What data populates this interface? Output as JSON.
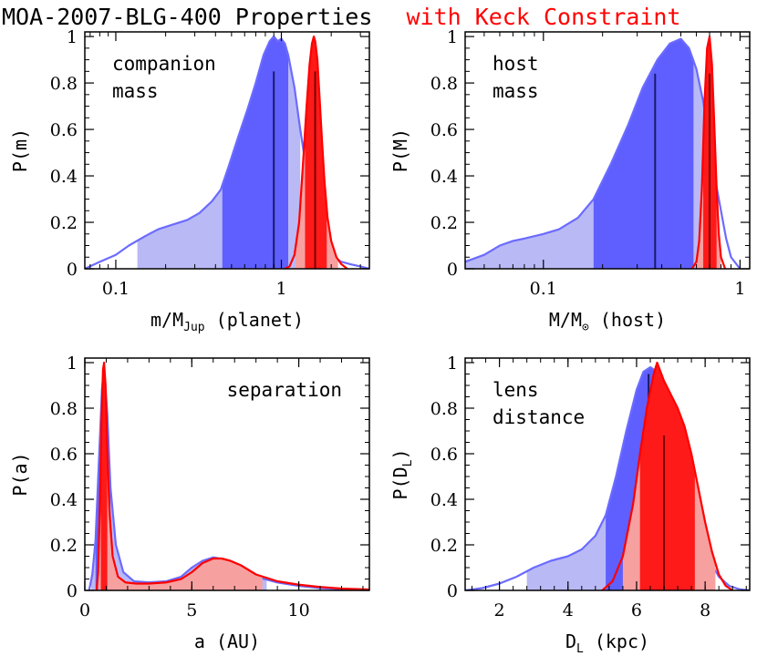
{
  "figure": {
    "title_main": "MOA-2007-BLG-400 Properties",
    "title_red": "with Keck Constraint",
    "colors": {
      "prior_fill": "#5f5fff",
      "prior_fill_light": "#b9b9f6",
      "prior_line": "#6b6bff",
      "keck_fill": "#ff1a1a",
      "keck_fill_light": "#f7a0a0",
      "keck_line": "#ff0000",
      "marker_line": "#1a1a6b"
    }
  },
  "chart_data": [
    {
      "id": "companion-mass",
      "type": "area",
      "xscale": "log",
      "xlim": [
        0.065,
        3.4
      ],
      "ylim": [
        0,
        1.02
      ],
      "xticks": [
        0.1,
        1
      ],
      "xticklabels": [
        "0.1",
        "1"
      ],
      "yticks": [
        0,
        0.2,
        0.4,
        0.6,
        0.8,
        1
      ],
      "yticklabels": [
        "0",
        "0.2",
        "0.4",
        "0.6",
        "0.8",
        "1"
      ],
      "ylabel": "P(m)",
      "xlabel_main": "m/M",
      "xlabel_sub": "Jup",
      "xlabel_tail": " (planet)",
      "annotation": [
        "companion",
        "mass"
      ],
      "annotation_corner": "top-left",
      "series": [
        {
          "kind": "prior",
          "x": [
            0.065,
            0.08,
            0.1,
            0.12,
            0.15,
            0.18,
            0.22,
            0.27,
            0.32,
            0.38,
            0.43,
            0.48,
            0.55,
            0.62,
            0.7,
            0.78,
            0.85,
            0.9,
            0.95,
            1.0,
            1.05,
            1.1,
            1.2,
            1.3,
            1.4,
            1.6,
            1.8,
            2.0,
            2.3,
            2.6,
            3.0,
            3.4
          ],
          "y": [
            0.0,
            0.03,
            0.06,
            0.1,
            0.14,
            0.17,
            0.19,
            0.21,
            0.24,
            0.29,
            0.34,
            0.44,
            0.57,
            0.68,
            0.8,
            0.92,
            0.98,
            1.0,
            0.98,
            0.99,
            0.97,
            0.92,
            0.78,
            0.6,
            0.45,
            0.25,
            0.12,
            0.06,
            0.03,
            0.02,
            0.01,
            0.0
          ],
          "shade_inner": [
            0.44,
            1.1
          ],
          "shade_outer": [
            0.135,
            1.3
          ],
          "marker": 0.9,
          "marker_height": 0.85
        },
        {
          "kind": "keck",
          "x": [
            1.05,
            1.12,
            1.2,
            1.28,
            1.35,
            1.42,
            1.48,
            1.53,
            1.57,
            1.6,
            1.62,
            1.65,
            1.7,
            1.76,
            1.82,
            1.9,
            2.0,
            2.15,
            2.3,
            2.5
          ],
          "y": [
            0.0,
            0.01,
            0.06,
            0.2,
            0.45,
            0.7,
            0.88,
            0.97,
            1.0,
            0.98,
            0.95,
            0.9,
            0.74,
            0.55,
            0.38,
            0.22,
            0.12,
            0.05,
            0.02,
            0.0
          ],
          "shade_inner": [
            1.39,
            1.88
          ],
          "shade_outer": [
            1.22,
            2.2
          ],
          "marker": 1.6,
          "marker_height": 0.85
        }
      ]
    },
    {
      "id": "host-mass",
      "type": "area",
      "xscale": "log",
      "xlim": [
        0.04,
        1.12
      ],
      "ylim": [
        0,
        1.02
      ],
      "xticks": [
        0.1,
        1
      ],
      "xticklabels": [
        "0.1",
        "1"
      ],
      "yticks": [
        0,
        0.2,
        0.4,
        0.6,
        0.8,
        1
      ],
      "yticklabels": [
        "0",
        "0.2",
        "0.4",
        "0.6",
        "0.8",
        "1"
      ],
      "ylabel": "P(M)",
      "xlabel_main": "M/M",
      "xlabel_sub": "⊙",
      "xlabel_tail": " (host)",
      "annotation": [
        "host",
        "mass"
      ],
      "annotation_corner": "top-left",
      "series": [
        {
          "kind": "prior",
          "x": [
            0.04,
            0.05,
            0.06,
            0.07,
            0.08,
            0.1,
            0.12,
            0.15,
            0.18,
            0.22,
            0.27,
            0.32,
            0.38,
            0.44,
            0.5,
            0.55,
            0.6,
            0.65,
            0.7,
            0.75,
            0.8,
            0.85,
            0.9,
            1.0
          ],
          "y": [
            0.03,
            0.06,
            0.1,
            0.12,
            0.13,
            0.15,
            0.17,
            0.22,
            0.3,
            0.45,
            0.62,
            0.78,
            0.9,
            0.97,
            0.99,
            0.95,
            0.86,
            0.72,
            0.54,
            0.38,
            0.25,
            0.13,
            0.05,
            0.0
          ],
          "shade_inner": [
            0.18,
            0.58
          ],
          "shade_outer": [
            0.04,
            0.68
          ],
          "marker": 0.37,
          "marker_height": 0.84
        },
        {
          "kind": "keck",
          "x": [
            0.57,
            0.6,
            0.62,
            0.64,
            0.66,
            0.68,
            0.7,
            0.72,
            0.74,
            0.76,
            0.78,
            0.8,
            0.84
          ],
          "y": [
            0.0,
            0.03,
            0.12,
            0.35,
            0.72,
            0.95,
            1.0,
            0.88,
            0.62,
            0.35,
            0.15,
            0.05,
            0.0
          ],
          "shade_inner": [
            0.65,
            0.76
          ],
          "shade_outer": [
            0.6,
            0.8
          ],
          "marker": 0.7,
          "marker_height": 0.84
        }
      ]
    },
    {
      "id": "separation",
      "type": "area",
      "xscale": "linear",
      "xlim": [
        0,
        13.3
      ],
      "ylim": [
        0,
        1.02
      ],
      "xticks": [
        0,
        5,
        10
      ],
      "xticklabels": [
        "0",
        "5",
        "10"
      ],
      "yticks": [
        0,
        0.2,
        0.4,
        0.6,
        0.8,
        1
      ],
      "yticklabels": [
        "0",
        "0.2",
        "0.4",
        "0.6",
        "0.8",
        "1"
      ],
      "ylabel": "P(a)",
      "xlabel_main": "a (AU)",
      "xlabel_sub": "",
      "xlabel_tail": "",
      "annotation": [
        "separation"
      ],
      "annotation_corner": "top-right",
      "series": [
        {
          "kind": "prior",
          "x": [
            0.2,
            0.35,
            0.5,
            0.65,
            0.8,
            0.9,
            1.05,
            1.2,
            1.45,
            1.8,
            2.3,
            3.0,
            3.8,
            4.5,
            5.0,
            5.5,
            6.0,
            6.3,
            6.7,
            7.2,
            8.0,
            9.0,
            10.0,
            11.0,
            12.0,
            13.3
          ],
          "y": [
            0.0,
            0.07,
            0.22,
            0.55,
            0.88,
            0.98,
            0.78,
            0.45,
            0.2,
            0.08,
            0.04,
            0.035,
            0.04,
            0.06,
            0.1,
            0.13,
            0.145,
            0.14,
            0.13,
            0.1,
            0.06,
            0.035,
            0.02,
            0.01,
            0.005,
            0.0
          ],
          "shade_inner": [
            0.5,
            1.2
          ],
          "shade_outer": [
            0.3,
            8.5
          ],
          "marker": 0.9,
          "marker_height": 0.0
        },
        {
          "kind": "keck",
          "x": [
            0.55,
            0.62,
            0.7,
            0.78,
            0.85,
            0.9,
            0.97,
            1.05,
            1.15,
            1.3,
            1.55,
            1.9,
            2.4,
            3.0,
            3.8,
            4.5,
            5.0,
            5.5,
            6.0,
            6.4,
            6.8,
            7.3,
            8.0,
            9.0,
            10.0,
            11.0,
            12.0,
            13.3
          ],
          "y": [
            0.0,
            0.08,
            0.35,
            0.75,
            0.97,
            1.0,
            0.9,
            0.62,
            0.35,
            0.15,
            0.06,
            0.035,
            0.03,
            0.03,
            0.035,
            0.05,
            0.08,
            0.12,
            0.14,
            0.14,
            0.13,
            0.11,
            0.07,
            0.04,
            0.025,
            0.015,
            0.008,
            0.004
          ],
          "shade_inner": [
            0.75,
            1.05
          ],
          "shade_outer": [
            0.62,
            8.3
          ],
          "marker": 0.9,
          "marker_height": 0.0
        }
      ]
    },
    {
      "id": "lens-distance",
      "type": "area",
      "xscale": "linear",
      "xlim": [
        1,
        9.3
      ],
      "ylim": [
        0,
        1.02
      ],
      "xticks": [
        2,
        4,
        6,
        8
      ],
      "xticklabels": [
        "2",
        "4",
        "6",
        "8"
      ],
      "yticks": [
        0,
        0.2,
        0.4,
        0.6,
        0.8,
        1
      ],
      "yticklabels": [
        "0",
        "0.2",
        "0.4",
        "0.6",
        "0.8",
        "1"
      ],
      "ylabel_main": "P(D",
      "ylabel_sub": "L",
      "ylabel_tail": ")",
      "xlabel_main": "D",
      "xlabel_sub": "L",
      "xlabel_tail": " (kpc)",
      "annotation": [
        "lens",
        "distance"
      ],
      "annotation_corner": "top-left",
      "series": [
        {
          "kind": "prior",
          "x": [
            1.0,
            1.5,
            2.0,
            2.5,
            3.0,
            3.5,
            4.0,
            4.4,
            4.8,
            5.1,
            5.4,
            5.7,
            6.0,
            6.2,
            6.4,
            6.6,
            6.8,
            7.0,
            7.2,
            7.5,
            7.8,
            8.1,
            8.4,
            8.7,
            9.0,
            9.3
          ],
          "y": [
            0.0,
            0.01,
            0.03,
            0.06,
            0.1,
            0.13,
            0.15,
            0.18,
            0.24,
            0.33,
            0.5,
            0.7,
            0.88,
            0.96,
            0.98,
            0.96,
            0.88,
            0.75,
            0.6,
            0.42,
            0.26,
            0.14,
            0.06,
            0.02,
            0.005,
            0.0
          ],
          "shade_inner": [
            5.1,
            6.9
          ],
          "shade_outer": [
            2.8,
            7.5
          ],
          "marker": 6.35,
          "marker_height": 0.95
        },
        {
          "kind": "keck",
          "x": [
            5.0,
            5.3,
            5.6,
            5.9,
            6.1,
            6.3,
            6.5,
            6.6,
            6.8,
            7.0,
            7.2,
            7.4,
            7.6,
            7.8,
            8.0,
            8.2,
            8.4,
            8.6,
            8.8
          ],
          "y": [
            0.0,
            0.04,
            0.15,
            0.38,
            0.6,
            0.8,
            0.95,
            1.0,
            0.92,
            0.86,
            0.8,
            0.72,
            0.6,
            0.45,
            0.3,
            0.17,
            0.07,
            0.02,
            0.0
          ],
          "shade_inner": [
            6.1,
            7.7
          ],
          "shade_outer": [
            5.6,
            8.3
          ],
          "marker": 6.8,
          "marker_height": 0.68
        }
      ]
    }
  ]
}
